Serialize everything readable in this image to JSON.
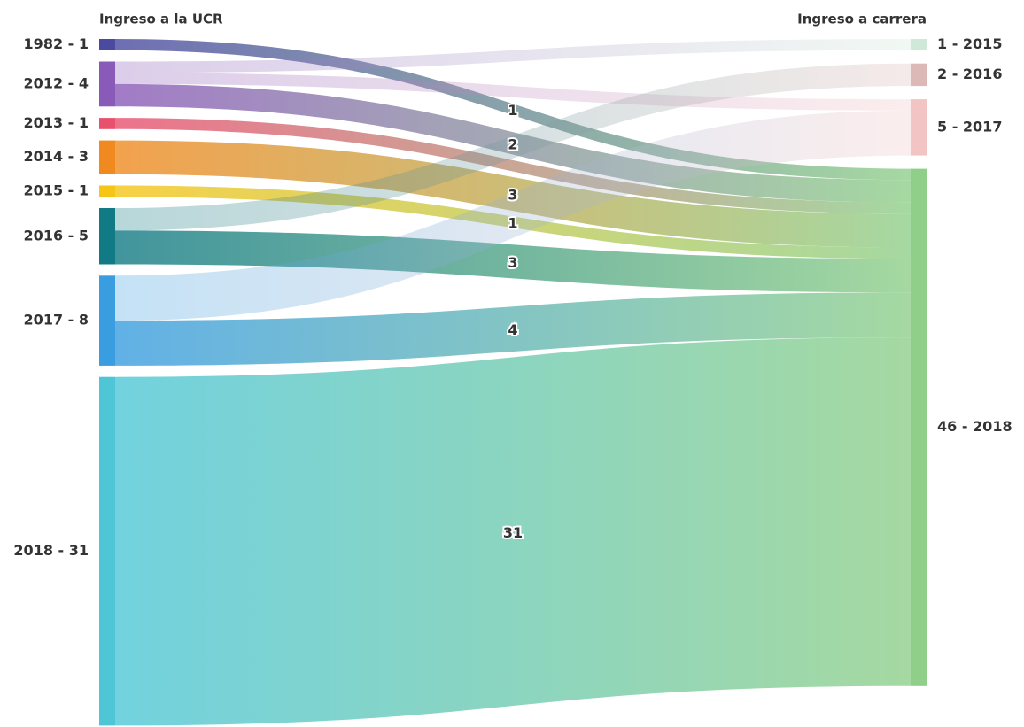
{
  "chart_data": {
    "type": "sankey",
    "source_title": "Ingreso a la UCR",
    "target_title": "Ingreso a carrera",
    "sources": [
      {
        "label": "1982 - 1",
        "value": 1,
        "color": "#4a4aa0"
      },
      {
        "label": "2012 - 4",
        "value": 4,
        "color": "#8a5ab8"
      },
      {
        "label": "2013 - 1",
        "value": 1,
        "color": "#e8506e"
      },
      {
        "label": "2014 - 3",
        "value": 3,
        "color": "#f08a20"
      },
      {
        "label": "2015 - 1",
        "value": 1,
        "color": "#f5c518"
      },
      {
        "label": "2016 - 5",
        "value": 5,
        "color": "#127a84"
      },
      {
        "label": "2017 - 8",
        "value": 8,
        "color": "#3a9de0"
      },
      {
        "label": "2018 - 31",
        "value": 31,
        "color": "#4ec6d6"
      }
    ],
    "targets": [
      {
        "label": "1 - 2015",
        "value": 1,
        "color": "#cfe8d8"
      },
      {
        "label": "2 - 2016",
        "value": 2,
        "color": "#dcb8b6"
      },
      {
        "label": "5 - 2017",
        "value": 5,
        "color": "#f2c4c4"
      },
      {
        "label": "46 - 2018",
        "value": 46,
        "color": "#8fcf8a"
      }
    ],
    "links": [
      {
        "source": 0,
        "target": 3,
        "value": 1,
        "show_label": true,
        "faded": false
      },
      {
        "source": 1,
        "target": 0,
        "value": 1,
        "show_label": false,
        "faded": true
      },
      {
        "source": 1,
        "target": 2,
        "value": 1,
        "show_label": false,
        "faded": true
      },
      {
        "source": 1,
        "target": 3,
        "value": 2,
        "show_label": true,
        "faded": false
      },
      {
        "source": 2,
        "target": 3,
        "value": 1,
        "show_label": false,
        "faded": false
      },
      {
        "source": 3,
        "target": 3,
        "value": 3,
        "show_label": true,
        "faded": false
      },
      {
        "source": 4,
        "target": 3,
        "value": 1,
        "show_label": true,
        "faded": false
      },
      {
        "source": 5,
        "target": 1,
        "value": 2,
        "show_label": false,
        "faded": true
      },
      {
        "source": 5,
        "target": 3,
        "value": 3,
        "show_label": true,
        "faded": false
      },
      {
        "source": 6,
        "target": 2,
        "value": 4,
        "show_label": false,
        "faded": true
      },
      {
        "source": 6,
        "target": 3,
        "value": 4,
        "show_label": true,
        "faded": false
      },
      {
        "source": 7,
        "target": 3,
        "value": 31,
        "show_label": true,
        "faded": false
      }
    ]
  }
}
